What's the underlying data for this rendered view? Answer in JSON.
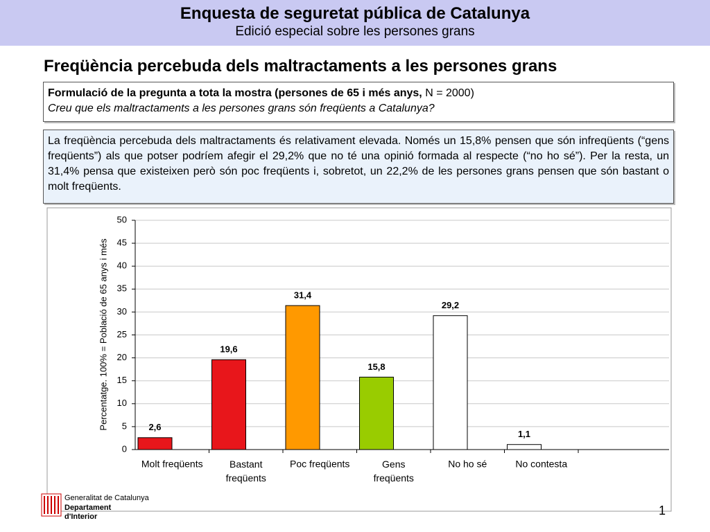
{
  "header": {
    "title": "Enquesta de seguretat pública de Catalunya",
    "subtitle": "Edició especial sobre les persones grans"
  },
  "heading": "Freqüència percebuda dels maltractaments a les persones grans",
  "question": {
    "label": "Formulació de la pregunta a tota la mostra (persones de 65 i més anys,",
    "label_n": "N = 2000)",
    "text": "Creu que els maltractaments a les persones grans són freqüents a Catalunya?"
  },
  "summary": "La freqüència percebuda dels maltractaments és relativament elevada. Només un 15,8% pensen que són infreqüents (“gens freqüents”) als que potser podríem afegir el 29,2% que no té una opinió formada al respecte (“no ho sé”). Per la resta, un 31,4% pensa que existeixen però són poc freqüents i, sobretot, un 22,2% de les persones grans pensen que són bastant o molt freqüents.",
  "chart_data": {
    "type": "bar",
    "ylabel": "Percentatge. 100% = Població de 65 anys i més",
    "categories": [
      "Molt freqüents",
      "Bastant freqüents",
      "Poc freqüents",
      "Gens freqüents",
      "No ho sé",
      "No contesta"
    ],
    "values": [
      2.6,
      19.6,
      31.4,
      15.8,
      29.2,
      1.1
    ],
    "value_labels": [
      "2,6",
      "19,6",
      "31,4",
      "15,8",
      "29,2",
      "1,1"
    ],
    "colors": [
      "#e8161b",
      "#e8161b",
      "#ff9900",
      "#99cc00",
      "#ffffff",
      "#ffffff"
    ],
    "ylim": [
      0,
      50
    ],
    "yticks": [
      0,
      5,
      10,
      15,
      20,
      25,
      30,
      35,
      40,
      45,
      50
    ],
    "grid": true
  },
  "footer": {
    "org": "Generalitat de Catalunya",
    "dept1": "Departament",
    "dept2": "d'Interior"
  },
  "page_number": "1"
}
